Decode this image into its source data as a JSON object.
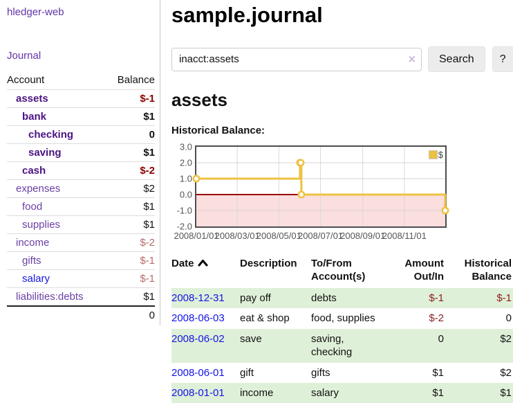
{
  "brand": "hledger-web",
  "nav": {
    "journal_label": "Journal"
  },
  "sidebar": {
    "columns": {
      "account": "Account",
      "balance": "Balance"
    },
    "accounts": [
      {
        "name": "assets",
        "indent": 1,
        "bold": true,
        "balance": "$-1",
        "neg": "strong",
        "link_color": "purple"
      },
      {
        "name": "bank",
        "indent": 2,
        "bold": true,
        "balance": "$1",
        "neg": "none",
        "link_color": "purple"
      },
      {
        "name": "checking",
        "indent": 3,
        "bold": true,
        "balance": "0",
        "neg": "none",
        "link_color": "purple"
      },
      {
        "name": "saving",
        "indent": 3,
        "bold": true,
        "balance": "$1",
        "neg": "none",
        "link_color": "purple"
      },
      {
        "name": "cash",
        "indent": 2,
        "bold": true,
        "balance": "$-2",
        "neg": "strong",
        "link_color": "purple"
      },
      {
        "name": "expenses",
        "indent": 1,
        "bold": false,
        "balance": "$2",
        "neg": "none",
        "link_color": "purple"
      },
      {
        "name": "food",
        "indent": 2,
        "bold": false,
        "balance": "$1",
        "neg": "none",
        "link_color": "purple"
      },
      {
        "name": "supplies",
        "indent": 2,
        "bold": false,
        "balance": "$1",
        "neg": "none",
        "link_color": "purple"
      },
      {
        "name": "income",
        "indent": 1,
        "bold": false,
        "balance": "$-2",
        "neg": "muted",
        "link_color": "purple"
      },
      {
        "name": "gifts",
        "indent": 2,
        "bold": false,
        "balance": "$-1",
        "neg": "muted",
        "link_color": "purple"
      },
      {
        "name": "salary",
        "indent": 2,
        "bold": false,
        "balance": "$-1",
        "neg": "muted",
        "link_color": "blue"
      },
      {
        "name": "liabilities:debts",
        "indent": 1,
        "bold": false,
        "balance": "$1",
        "neg": "none",
        "link_color": "purple"
      }
    ],
    "total": "0"
  },
  "header": {
    "title": "sample.journal"
  },
  "search": {
    "value": "inacct:assets",
    "clear_icon": "×",
    "button_label": "Search",
    "help_label": "?"
  },
  "account_page": {
    "heading": "assets",
    "chart_label": "Historical Balance:"
  },
  "chart_data": {
    "type": "line",
    "title": "Historical Balance:",
    "step": true,
    "series": [
      {
        "name": "$",
        "color": "#edc240",
        "points": [
          [
            "2008-01-01",
            1
          ],
          [
            "2008-06-01",
            2
          ],
          [
            "2008-06-02",
            2
          ],
          [
            "2008-06-03",
            0
          ],
          [
            "2008-12-31",
            -1
          ]
        ]
      }
    ],
    "xlim": [
      "2008-01-01",
      "2008-12-31"
    ],
    "ylim": [
      -2,
      3
    ],
    "yticks": [
      3.0,
      2.0,
      1.0,
      0.0,
      -1.0,
      -2.0
    ],
    "xticks": [
      "2008/01/01",
      "2008/03/01",
      "2008/05/01",
      "2008/07/01",
      "2008/09/01",
      "2008/11/01"
    ],
    "grid": true,
    "zero_line_color": "#990000",
    "negative_region_fill": "#fbdede",
    "legend": {
      "label": "$",
      "swatch_color": "#edc240",
      "position": "top-right"
    }
  },
  "register": {
    "columns": [
      "Date",
      "Description",
      "To/From Account(s)",
      "Amount Out/In",
      "Historical Balance"
    ],
    "sort": {
      "column": "Date",
      "direction": "asc"
    },
    "rows": [
      {
        "date": "2008-12-31",
        "description": "pay off",
        "accounts": [
          "debts"
        ],
        "amount": "$-1",
        "amount_neg": true,
        "balance": "$-1",
        "balance_neg": true
      },
      {
        "date": "2008-06-03",
        "description": "eat & shop",
        "accounts": [
          "food",
          "supplies"
        ],
        "amount": "$-2",
        "amount_neg": true,
        "balance": "0",
        "balance_neg": false
      },
      {
        "date": "2008-06-02",
        "description": "save",
        "accounts": [
          "saving",
          "checking"
        ],
        "amount": "0",
        "amount_neg": false,
        "balance": "$2",
        "balance_neg": false
      },
      {
        "date": "2008-06-01",
        "description": "gift",
        "accounts": [
          "gifts"
        ],
        "amount": "$1",
        "amount_neg": false,
        "balance": "$2",
        "balance_neg": false
      },
      {
        "date": "2008-01-01",
        "description": "income",
        "accounts": [
          "salary"
        ],
        "amount": "$1",
        "amount_neg": false,
        "balance": "$1",
        "balance_neg": false
      }
    ]
  },
  "colors": {
    "link_purple": "#6a3fa5",
    "link_purple_bold": "#4b1383",
    "link_blue": "#1414e6",
    "neg_strong": "#8b0000",
    "neg_muted": "#b96a6a",
    "neg_table": "#8b1d1d",
    "row_green": "#dff0d8",
    "chart_line": "#edc240",
    "chart_zero": "#990000",
    "chart_negative_fill": "#fbdede",
    "button_bg": "#ececec"
  }
}
